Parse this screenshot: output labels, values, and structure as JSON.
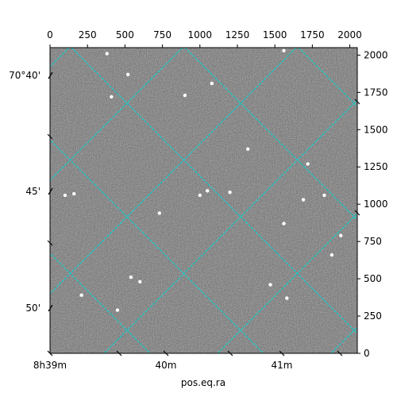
{
  "chart_data": {
    "type": "image",
    "xlabel": "pos.eq.ra",
    "ylabel": "",
    "pixel_x_axis": {
      "range": [
        0,
        2050
      ],
      "ticks": [
        0,
        250,
        500,
        750,
        1000,
        1250,
        1500,
        1750,
        2000
      ]
    },
    "pixel_y_axis": {
      "range": [
        0,
        2050
      ],
      "ticks": [
        0,
        250,
        500,
        750,
        1000,
        1250,
        1500,
        1750,
        2000
      ]
    },
    "ra_ticks": [
      "8h39m",
      "40m",
      "41m"
    ],
    "dec_ticks": [
      "70°40'",
      "45'",
      "50'"
    ],
    "grid": true,
    "grid_color": "#00d8d8",
    "image_colormap": "gray",
    "stars": [
      {
        "x": 380,
        "y": 2010
      },
      {
        "x": 520,
        "y": 1870
      },
      {
        "x": 410,
        "y": 1720
      },
      {
        "x": 900,
        "y": 1730
      },
      {
        "x": 1080,
        "y": 1810
      },
      {
        "x": 1560,
        "y": 2030
      },
      {
        "x": 1320,
        "y": 1370
      },
      {
        "x": 1720,
        "y": 1270
      },
      {
        "x": 1830,
        "y": 1060
      },
      {
        "x": 1690,
        "y": 1030
      },
      {
        "x": 1050,
        "y": 1090
      },
      {
        "x": 1000,
        "y": 1060
      },
      {
        "x": 1200,
        "y": 1080
      },
      {
        "x": 730,
        "y": 940
      },
      {
        "x": 100,
        "y": 1060
      },
      {
        "x": 160,
        "y": 1070
      },
      {
        "x": 540,
        "y": 510
      },
      {
        "x": 600,
        "y": 480
      },
      {
        "x": 210,
        "y": 390
      },
      {
        "x": 450,
        "y": 290
      },
      {
        "x": 1470,
        "y": 460
      },
      {
        "x": 1580,
        "y": 370
      },
      {
        "x": 1880,
        "y": 660
      },
      {
        "x": 1940,
        "y": 790
      },
      {
        "x": 1560,
        "y": 870
      }
    ]
  }
}
